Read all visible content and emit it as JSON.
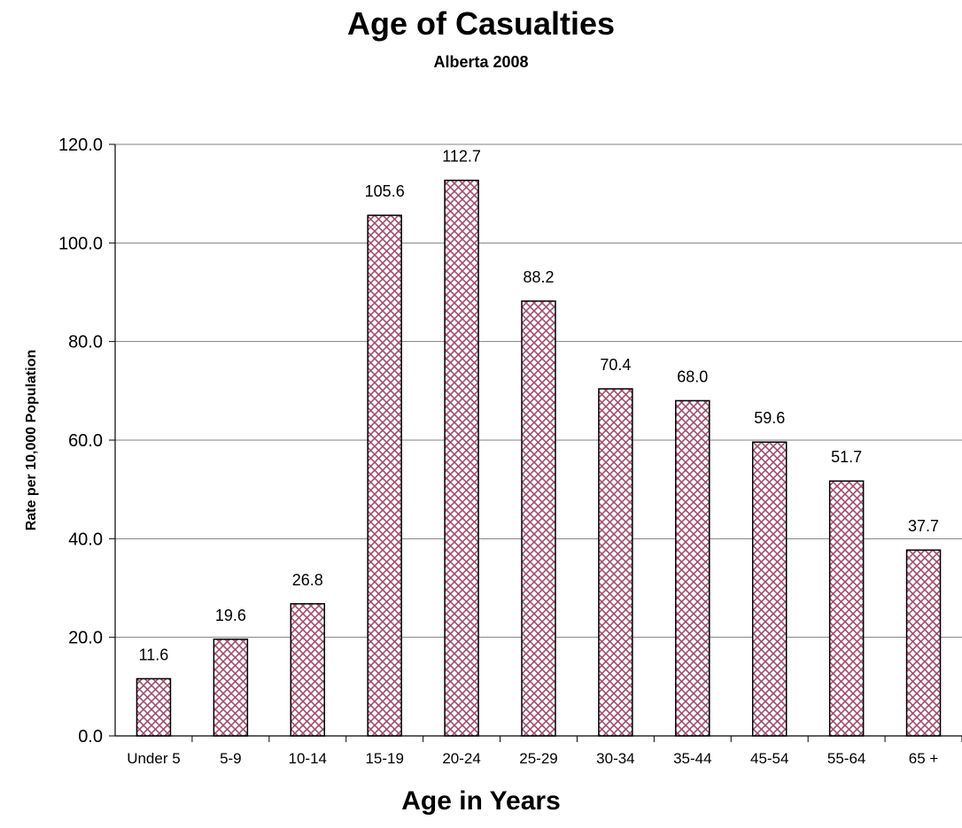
{
  "chart_data": {
    "type": "bar",
    "title": "Age of Casualties",
    "subtitle": "Alberta 2008",
    "xlabel": "Age in Years",
    "ylabel": "Rate per 10,000 Population",
    "categories": [
      "Under 5",
      "5-9",
      "10-14",
      "15-19",
      "20-24",
      "25-29",
      "30-34",
      "35-44",
      "45-54",
      "55-64",
      "65 +"
    ],
    "values": [
      11.6,
      19.6,
      26.8,
      105.6,
      112.7,
      88.2,
      70.4,
      68.0,
      59.6,
      51.7,
      37.7
    ],
    "data_labels": [
      "11.6",
      "19.6",
      "26.8",
      "105.6",
      "112.7",
      "88.2",
      "70.4",
      "68.0",
      "59.6",
      "51.7",
      "37.7"
    ],
    "ylim": [
      0,
      120
    ],
    "y_ticks": [
      0,
      20,
      40,
      60,
      80,
      100,
      120
    ],
    "y_tick_labels": [
      "0.0",
      "20.0",
      "40.0",
      "60.0",
      "80.0",
      "100.0",
      "120.0"
    ],
    "grid": "horizontal",
    "legend": "none",
    "colors": {
      "bar_pattern": "#a0506e",
      "bar_fill": "#ffffff",
      "bar_edge": "#000000",
      "grid": "#808080"
    }
  }
}
